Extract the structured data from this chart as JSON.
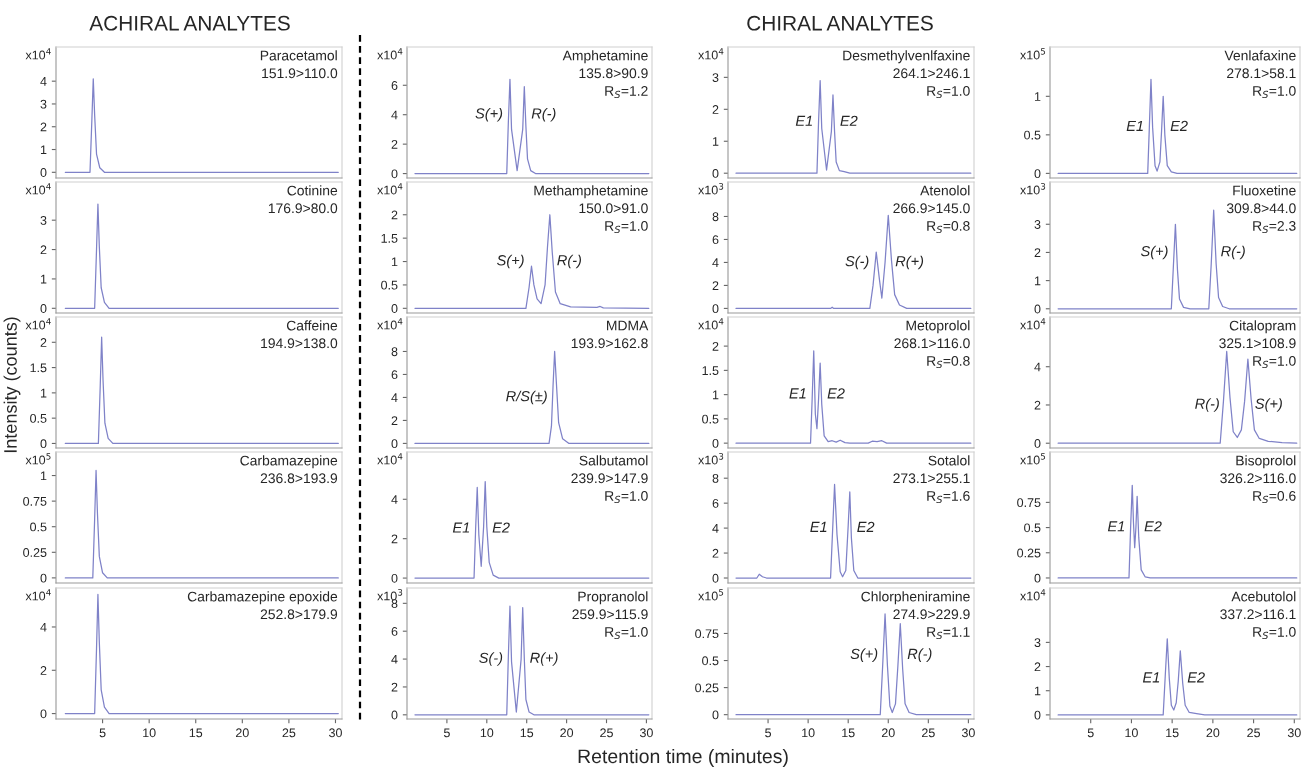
{
  "chart_data": [
    {
      "type": "line",
      "ylabel": "x10$^{4}$",
      "color": "#7f82c8",
      "xlim": [
        0,
        30.7
      ],
      "ylim": [
        -0.25,
        5.5
      ],
      "yticks": [
        0,
        1,
        2,
        3,
        4
      ],
      "tick_labels": "y",
      "annotations": [
        "Paracetamol",
        "151.9>110.0"
      ],
      "x": [
        1,
        3.65,
        3.85,
        4.0,
        4.15,
        4.35,
        4.7,
        5.2,
        30.3
      ],
      "values": [
        0,
        0,
        2.3,
        4.1,
        2.5,
        0.8,
        0.2,
        0,
        0
      ]
    },
    {
      "type": "line",
      "ylabel": "x10$^{4}$",
      "color": "#7f82c8",
      "xlim": [
        0,
        30.7
      ],
      "ylim": [
        -0.3,
        8.6
      ],
      "yticks": [
        0,
        2,
        4,
        6
      ],
      "tick_labels": "y",
      "annotations": [
        "Amphetamine",
        "135.8>90.9",
        "R$_{S}$=1.2",
        {
          "text": "S(+)",
          "x": 12.9,
          "y": 4
        },
        {
          "text": "R(-)",
          "x": 14.7,
          "y": 4
        }
      ],
      "x": [
        1,
        12.5,
        12.7,
        12.9,
        13.1,
        13.8,
        14.5,
        14.7,
        14.9,
        15.1,
        15.5,
        16.1,
        30.3
      ],
      "values": [
        0,
        0,
        3.5,
        6.4,
        3.0,
        0.2,
        3.0,
        5.9,
        3.2,
        1.0,
        0.2,
        0,
        0
      ]
    },
    {
      "type": "line",
      "ylabel": "x10$^{4}$",
      "color": "#7f82c8",
      "xlim": [
        0,
        30.7
      ],
      "ylim": [
        -0.15,
        3.95
      ],
      "yticks": [
        0,
        1,
        2,
        3
      ],
      "tick_labels": "y",
      "annotations": [
        "Desmethylvenlfaxine",
        "264.1>246.1",
        "R$_{S}$=1.0",
        {
          "text": "E1",
          "x": 11.5,
          "y": 1.6
        },
        {
          "text": "E2",
          "x": 13.1,
          "y": 1.6
        }
      ],
      "x": [
        1,
        11.1,
        11.3,
        11.5,
        11.7,
        12.3,
        12.9,
        13.1,
        13.3,
        13.5,
        13.9,
        14.5,
        15.2,
        30.3
      ],
      "values": [
        0,
        0,
        1.6,
        2.9,
        1.4,
        0.1,
        1.3,
        2.45,
        1.3,
        0.35,
        0.08,
        0.05,
        0,
        0
      ]
    },
    {
      "type": "line",
      "ylabel": "x10$^{5}$",
      "color": "#7f82c8",
      "xlim": [
        0,
        30.7
      ],
      "ylim": [
        -0.06,
        1.64
      ],
      "yticks": [
        0,
        0.5,
        1
      ],
      "tick_labels": "y",
      "annotations": [
        "Venlafaxine",
        "278.1>58.1",
        "R$_{S}$=1.0",
        {
          "text": "E1",
          "x": 12.4,
          "y": 0.6
        },
        {
          "text": "E2",
          "x": 13.9,
          "y": 0.6
        }
      ],
      "x": [
        1,
        12.0,
        12.2,
        12.4,
        12.6,
        12.9,
        13.15,
        13.5,
        13.7,
        13.9,
        14.1,
        14.4,
        14.9,
        15.6,
        30.3
      ],
      "values": [
        0,
        0,
        0.6,
        1.22,
        0.6,
        0.1,
        0.03,
        0.15,
        0.55,
        1.0,
        0.5,
        0.1,
        0.02,
        0,
        0
      ]
    },
    {
      "type": "line",
      "ylabel": "x10$^{4}$",
      "color": "#7f82c8",
      "xlim": [
        0,
        30.7
      ],
      "ylim": [
        -0.16,
        4.3
      ],
      "yticks": [
        0,
        1,
        2,
        3
      ],
      "tick_labels": "y",
      "annotations": [
        "Cotinine",
        "176.9>80.0"
      ],
      "x": [
        1,
        4.15,
        4.35,
        4.5,
        4.65,
        4.85,
        5.2,
        5.7,
        30.3
      ],
      "values": [
        0,
        0,
        2.0,
        3.55,
        2.1,
        0.7,
        0.2,
        0,
        0
      ]
    },
    {
      "type": "line",
      "ylabel": "x10$^{4}$",
      "color": "#7f82c8",
      "xlim": [
        0,
        30.7
      ],
      "ylim": [
        -0.1,
        2.7
      ],
      "yticks": [
        0,
        0.5,
        1,
        1.5,
        2
      ],
      "tick_labels": "y",
      "annotations": [
        "Methamphetamine",
        "150.0>91.0",
        "R$_{S}$=1.0",
        {
          "text": "S(+)",
          "x": 15.6,
          "y": 1.0
        },
        {
          "text": "R(-)",
          "x": 17.9,
          "y": 1.0
        }
      ],
      "x": [
        1,
        14.9,
        15.3,
        15.6,
        15.9,
        16.3,
        16.8,
        17.3,
        17.6,
        17.9,
        18.2,
        18.6,
        19.2,
        20.5,
        23.8,
        24.2,
        24.6,
        30.3
      ],
      "values": [
        0,
        0,
        0.45,
        0.9,
        0.5,
        0.2,
        0.1,
        0.5,
        1.3,
        2.0,
        1.2,
        0.35,
        0.1,
        0.03,
        0.02,
        0.04,
        0.01,
        0
      ]
    },
    {
      "type": "line",
      "ylabel": "x10$^{3}$",
      "color": "#7f82c8",
      "xlim": [
        0,
        30.7
      ],
      "ylim": [
        -0.4,
        11
      ],
      "yticks": [
        0,
        2,
        4,
        6,
        8
      ],
      "tick_labels": "y",
      "annotations": [
        "Atenolol",
        "266.9>145.0",
        "R$_{S}$=0.8",
        {
          "text": "S(-)",
          "x": 18.5,
          "y": 4
        },
        {
          "text": "R(+)",
          "x": 20.0,
          "y": 4
        }
      ],
      "x": [
        1,
        12.8,
        13.0,
        13.2,
        17.7,
        18.1,
        18.5,
        18.9,
        19.2,
        19.6,
        20.0,
        20.4,
        20.8,
        21.4,
        22.3,
        30.3
      ],
      "values": [
        0,
        0,
        0.1,
        0,
        0,
        2.0,
        4.9,
        2.5,
        0.9,
        4.0,
        8.1,
        4.2,
        1.2,
        0.3,
        0,
        0
      ]
    },
    {
      "type": "line",
      "ylabel": "x10$^{3}$",
      "color": "#7f82c8",
      "xlim": [
        0,
        30.7
      ],
      "ylim": [
        -0.15,
        4.5
      ],
      "yticks": [
        0,
        1,
        2,
        3
      ],
      "tick_labels": "y",
      "annotations": [
        "Fluoxetine",
        "309.8>44.0",
        "R$_{S}$=2.3",
        {
          "text": "S(+)",
          "x": 15.4,
          "y": 2.0
        },
        {
          "text": "R(-)",
          "x": 20.1,
          "y": 2.0
        }
      ],
      "x": [
        1,
        14.9,
        15.15,
        15.4,
        15.65,
        15.9,
        16.4,
        17.2,
        19.5,
        19.8,
        20.1,
        20.4,
        20.7,
        21.2,
        22.0,
        30.3
      ],
      "values": [
        0,
        0,
        1.5,
        3.0,
        1.4,
        0.35,
        0.05,
        0,
        0,
        1.6,
        3.5,
        1.6,
        0.4,
        0.08,
        0,
        0
      ]
    },
    {
      "type": "line",
      "ylabel": "x10$^{4}$",
      "color": "#7f82c8",
      "xlim": [
        0,
        30.7
      ],
      "ylim": [
        -0.09,
        2.5
      ],
      "yticks": [
        0,
        0.5,
        1,
        1.5,
        2
      ],
      "tick_labels": "y",
      "annotations": [
        "Caffeine",
        "194.9>138.0"
      ],
      "x": [
        1,
        4.55,
        4.75,
        4.9,
        5.05,
        5.25,
        5.6,
        6.1,
        30.3
      ],
      "values": [
        0,
        0,
        1.15,
        2.1,
        1.25,
        0.4,
        0.1,
        0,
        0
      ]
    },
    {
      "type": "line",
      "ylabel": "x10$^{4}$",
      "color": "#7f82c8",
      "xlim": [
        0,
        30.7
      ],
      "ylim": [
        -0.4,
        11
      ],
      "yticks": [
        0,
        2,
        4,
        6,
        8
      ],
      "tick_labels": "y",
      "annotations": [
        "MDMA",
        "193.9>162.8",
        {
          "text": "R/S(±)",
          "x": 18.5,
          "y": 4
        }
      ],
      "x": [
        1,
        17.8,
        18.1,
        18.3,
        18.5,
        18.7,
        19.0,
        19.5,
        20.3,
        30.3
      ],
      "values": [
        0,
        0,
        1.5,
        5,
        8.0,
        5.5,
        1.8,
        0.4,
        0,
        0
      ]
    },
    {
      "type": "line",
      "ylabel": "x10$^{4}$",
      "color": "#7f82c8",
      "xlim": [
        0,
        30.7
      ],
      "ylim": [
        -0.1,
        2.6
      ],
      "yticks": [
        0,
        0.5,
        1,
        1.5,
        2
      ],
      "tick_labels": "y",
      "annotations": [
        "Metoprolol",
        "268.1>116.0",
        "R$_{S}$=0.8",
        {
          "text": "E1",
          "x": 10.7,
          "y": 1.0
        },
        {
          "text": "E2",
          "x": 11.5,
          "y": 1.0
        }
      ],
      "x": [
        1,
        10.3,
        10.5,
        10.7,
        10.9,
        11.1,
        11.3,
        11.5,
        11.7,
        12.0,
        12.5,
        13.0,
        13.5,
        14.0,
        14.6,
        15.2,
        17.5,
        18.0,
        18.6,
        19.2,
        19.8,
        30.3
      ],
      "values": [
        0,
        0,
        0.9,
        1.9,
        0.6,
        0.3,
        0.9,
        1.65,
        0.8,
        0.15,
        0.03,
        0.05,
        0.02,
        0.06,
        0.01,
        0,
        0,
        0.04,
        0.03,
        0.05,
        0,
        0
      ]
    },
    {
      "type": "line",
      "ylabel": "x10$^{4}$",
      "color": "#7f82c8",
      "xlim": [
        0,
        30.7
      ],
      "ylim": [
        -0.25,
        6.6
      ],
      "yticks": [
        0,
        2,
        4
      ],
      "tick_labels": "y",
      "annotations": [
        "Citalopram",
        "325.1>108.9",
        "R$_{S}$=1.0",
        {
          "text": "R(-)",
          "x": 21.7,
          "y": 2.0
        },
        {
          "text": "S(+)",
          "x": 24.3,
          "y": 2.0
        }
      ],
      "x": [
        1,
        20.9,
        21.3,
        21.7,
        22.1,
        22.5,
        23.0,
        23.5,
        23.9,
        24.3,
        24.7,
        25.1,
        25.7,
        26.8,
        28.5,
        30.3
      ],
      "values": [
        0,
        0,
        2.2,
        4.8,
        2.4,
        0.6,
        0.3,
        0.7,
        2.2,
        4.4,
        2.3,
        0.7,
        0.25,
        0.1,
        0.03,
        0
      ]
    },
    {
      "type": "line",
      "ylabel": "x10$^{5}$",
      "color": "#7f82c8",
      "xlim": [
        0,
        30.7
      ],
      "ylim": [
        -0.05,
        1.23
      ],
      "yticks": [
        0,
        0.25,
        0.5,
        0.75,
        1
      ],
      "tick_labels": "y",
      "annotations": [
        "Carbamazepine",
        "236.8>193.9"
      ],
      "x": [
        1,
        3.95,
        4.15,
        4.3,
        4.45,
        4.65,
        5.0,
        5.5,
        30.3
      ],
      "values": [
        0,
        0,
        0.58,
        1.05,
        0.63,
        0.21,
        0.05,
        0,
        0
      ]
    },
    {
      "type": "line",
      "ylabel": "x10$^{4}$",
      "color": "#7f82c8",
      "xlim": [
        0,
        30.7
      ],
      "ylim": [
        -0.25,
        6.4
      ],
      "yticks": [
        0,
        2,
        4
      ],
      "tick_labels": "y",
      "annotations": [
        "Salbutamol",
        "239.9>147.9",
        "R$_{S}$=1.0",
        {
          "text": "E1",
          "x": 8.8,
          "y": 2.5
        },
        {
          "text": "E2",
          "x": 9.8,
          "y": 2.5
        }
      ],
      "x": [
        1,
        8.4,
        8.6,
        8.8,
        9.0,
        9.3,
        9.6,
        9.8,
        10.0,
        10.3,
        10.8,
        11.5,
        30.3
      ],
      "values": [
        0,
        0,
        2.5,
        4.6,
        2.2,
        0.6,
        2.6,
        4.9,
        2.6,
        0.8,
        0.15,
        0,
        0
      ]
    },
    {
      "type": "line",
      "ylabel": "x10$^{3}$",
      "color": "#7f82c8",
      "xlim": [
        0,
        30.7
      ],
      "ylim": [
        -0.4,
        10.1
      ],
      "yticks": [
        0,
        2,
        4,
        6,
        8
      ],
      "tick_labels": "y",
      "annotations": [
        "Sotalol",
        "273.1>255.1",
        "R$_{S}$=1.6",
        {
          "text": "E1",
          "x": 13.3,
          "y": 4
        },
        {
          "text": "E2",
          "x": 15.2,
          "y": 4
        }
      ],
      "x": [
        1,
        3.6,
        3.9,
        4.3,
        4.8,
        12.8,
        13.1,
        13.3,
        13.6,
        14.0,
        14.3,
        14.7,
        15.0,
        15.2,
        15.4,
        15.7,
        16.2,
        30.3
      ],
      "values": [
        0,
        0,
        0.3,
        0.1,
        0,
        0,
        4.5,
        7.5,
        3.5,
        0.5,
        0.1,
        0.6,
        4.2,
        6.9,
        3.2,
        0.6,
        0,
        0
      ]
    },
    {
      "type": "line",
      "ylabel": "x10$^{5}$",
      "color": "#7f82c8",
      "xlim": [
        0,
        30.7
      ],
      "ylim": [
        -0.05,
        1.25
      ],
      "yticks": [
        0,
        0.25,
        0.5,
        0.75
      ],
      "tick_labels": "y",
      "annotations": [
        "Bisoprolol",
        "326.2>116.0",
        "R$_{S}$=0.6",
        {
          "text": "E1",
          "x": 10.1,
          "y": 0.5
        },
        {
          "text": "E2",
          "x": 10.7,
          "y": 0.5
        }
      ],
      "x": [
        1,
        9.7,
        9.9,
        10.1,
        10.25,
        10.4,
        10.55,
        10.7,
        10.9,
        11.2,
        11.7,
        12.3,
        30.3
      ],
      "values": [
        0,
        0,
        0.5,
        0.92,
        0.55,
        0.3,
        0.5,
        0.81,
        0.4,
        0.08,
        0.01,
        0,
        0
      ]
    },
    {
      "type": "line",
      "ylabel": "x10$^{4}$",
      "color": "#7f82c8",
      "xlim": [
        0,
        30.7
      ],
      "ylim": [
        -0.25,
        5.8
      ],
      "yticks": [
        0,
        2,
        4
      ],
      "xticks": [
        5,
        10,
        15,
        20,
        25,
        30
      ],
      "annotations": [
        "Carbamazepine epoxide",
        "252.8>179.9"
      ],
      "x": [
        1,
        4.15,
        4.35,
        4.5,
        4.65,
        4.85,
        5.2,
        5.7,
        30.3
      ],
      "values": [
        0,
        0,
        3.0,
        5.5,
        3.3,
        1.1,
        0.3,
        0,
        0
      ]
    },
    {
      "type": "line",
      "ylabel": "x10$^{3}$",
      "color": "#7f82c8",
      "xlim": [
        0,
        30.7
      ],
      "ylim": [
        -0.3,
        9.1
      ],
      "yticks": [
        0,
        2,
        4,
        6,
        8
      ],
      "xticks": [
        5,
        10,
        15,
        20,
        25,
        30
      ],
      "annotations": [
        "Propranolol",
        "259.9>115.9",
        "R$_{S}$=1.0",
        {
          "text": "S(-)",
          "x": 12.9,
          "y": 4
        },
        {
          "text": "R(+)",
          "x": 14.5,
          "y": 4
        }
      ],
      "x": [
        1,
        12.5,
        12.7,
        12.9,
        13.1,
        13.7,
        14.3,
        14.5,
        14.7,
        14.9,
        15.3,
        15.9,
        30.3
      ],
      "values": [
        0,
        0,
        4.2,
        7.8,
        3.8,
        0.2,
        4.0,
        7.7,
        4.0,
        1.1,
        0.2,
        0,
        0
      ]
    },
    {
      "type": "line",
      "ylabel": "x10$^{5}$",
      "color": "#7f82c8",
      "xlim": [
        0,
        30.7
      ],
      "ylim": [
        -0.04,
        1.17
      ],
      "yticks": [
        0,
        0.25,
        0.5,
        0.75
      ],
      "xticks": [
        5,
        10,
        15,
        20,
        25,
        30
      ],
      "annotations": [
        "Chlorpheniramine",
        "274.9>229.9",
        "R$_{S}$=1.1",
        {
          "text": "S(+)",
          "x": 19.6,
          "y": 0.55
        },
        {
          "text": "R(-)",
          "x": 21.5,
          "y": 0.55
        }
      ],
      "x": [
        1,
        19.0,
        19.3,
        19.6,
        19.9,
        20.2,
        20.5,
        20.9,
        21.2,
        21.5,
        21.8,
        22.1,
        22.6,
        23.5,
        30.3
      ],
      "values": [
        0,
        0,
        0.45,
        0.93,
        0.45,
        0.08,
        0.02,
        0.1,
        0.45,
        0.84,
        0.42,
        0.1,
        0.02,
        0,
        0
      ]
    },
    {
      "type": "line",
      "ylabel": "x10$^{4}$",
      "color": "#7f82c8",
      "xlim": [
        0,
        30.7
      ],
      "ylim": [
        -0.17,
        5.25
      ],
      "yticks": [
        0,
        1,
        2,
        3
      ],
      "xticks": [
        5,
        10,
        15,
        20,
        25,
        30
      ],
      "annotations": [
        "Acebutolol",
        "337.2>116.1",
        "R$_{S}$=1.0",
        {
          "text": "E1",
          "x": 14.4,
          "y": 1.5
        },
        {
          "text": "E2",
          "x": 16.0,
          "y": 1.5
        }
      ],
      "x": [
        1,
        13.9,
        14.15,
        14.4,
        14.65,
        14.9,
        15.2,
        15.5,
        15.75,
        16.0,
        16.3,
        16.6,
        17.1,
        18.0,
        19.0,
        30.3
      ],
      "values": [
        0,
        0,
        1.6,
        3.15,
        1.5,
        0.4,
        0.2,
        0.5,
        1.4,
        2.65,
        1.3,
        0.4,
        0.1,
        0.05,
        0,
        0
      ]
    },
    {
      "type": "other",
      "annotations": [
        "ACHIRAL ANALYTES",
        "CHIRAL ANALYTES",
        "Intensity (counts)",
        "Retention time (minutes)"
      ]
    }
  ]
}
